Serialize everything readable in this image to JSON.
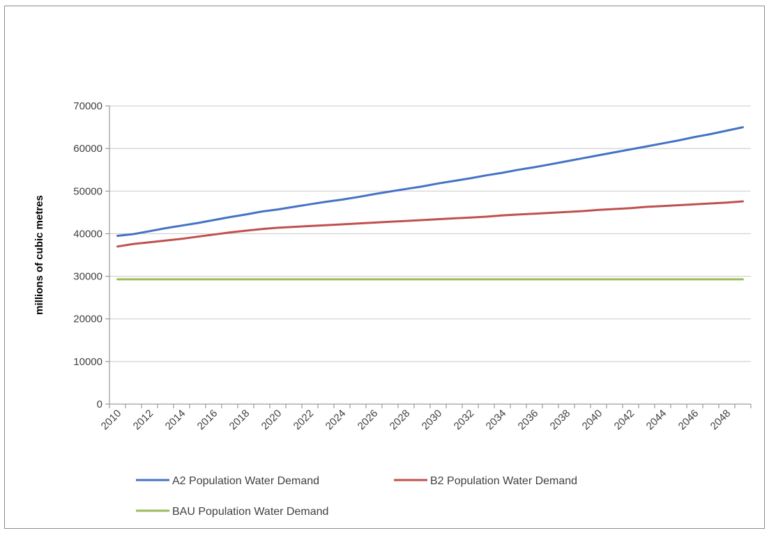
{
  "chart_data": {
    "type": "line",
    "title": "",
    "xlabel": "",
    "ylabel": "millions of cubic metres",
    "ylim": [
      0,
      70000
    ],
    "yticks": [
      0,
      10000,
      20000,
      30000,
      40000,
      50000,
      60000,
      70000
    ],
    "xticks": [
      "2010",
      "2012",
      "2014",
      "2016",
      "2018",
      "2020",
      "2022",
      "2024",
      "2026",
      "2028",
      "2030",
      "2032",
      "2034",
      "2036",
      "2038",
      "2040",
      "2042",
      "2044",
      "2046",
      "2048"
    ],
    "grid": true,
    "legend_position": "bottom",
    "x": [
      2010,
      2011,
      2012,
      2013,
      2014,
      2015,
      2016,
      2017,
      2018,
      2019,
      2020,
      2021,
      2022,
      2023,
      2024,
      2025,
      2026,
      2027,
      2028,
      2029,
      2030,
      2031,
      2032,
      2033,
      2034,
      2035,
      2036,
      2037,
      2038,
      2039,
      2040,
      2041,
      2042,
      2043,
      2044,
      2045,
      2046,
      2047,
      2048,
      2049
    ],
    "series": [
      {
        "name": "A2 Population Water Demand",
        "color": "#4472c4",
        "values": [
          39500,
          39900,
          40600,
          41300,
          41900,
          42500,
          43200,
          43900,
          44500,
          45200,
          45700,
          46300,
          46900,
          47500,
          48000,
          48600,
          49300,
          49900,
          50500,
          51100,
          51800,
          52400,
          53000,
          53700,
          54300,
          55000,
          55600,
          56300,
          57000,
          57700,
          58400,
          59100,
          59800,
          60500,
          61200,
          61900,
          62700,
          63400,
          64200,
          65000
        ]
      },
      {
        "name": "B2 Population Water Demand",
        "color": "#c0504d",
        "values": [
          37000,
          37600,
          38000,
          38400,
          38800,
          39300,
          39800,
          40300,
          40700,
          41100,
          41400,
          41600,
          41800,
          42000,
          42200,
          42400,
          42600,
          42800,
          43000,
          43200,
          43400,
          43600,
          43800,
          44000,
          44300,
          44500,
          44700,
          44900,
          45100,
          45300,
          45600,
          45800,
          46000,
          46300,
          46500,
          46700,
          46900,
          47100,
          47300,
          47600
        ]
      },
      {
        "name": "BAU Population Water Demand",
        "color": "#9bbb59",
        "values": [
          29300,
          29300,
          29300,
          29300,
          29300,
          29300,
          29300,
          29300,
          29300,
          29300,
          29300,
          29300,
          29300,
          29300,
          29300,
          29300,
          29300,
          29300,
          29300,
          29300,
          29300,
          29300,
          29300,
          29300,
          29300,
          29300,
          29300,
          29300,
          29300,
          29300,
          29300,
          29300,
          29300,
          29300,
          29300,
          29300,
          29300,
          29300,
          29300,
          29300
        ]
      }
    ]
  }
}
